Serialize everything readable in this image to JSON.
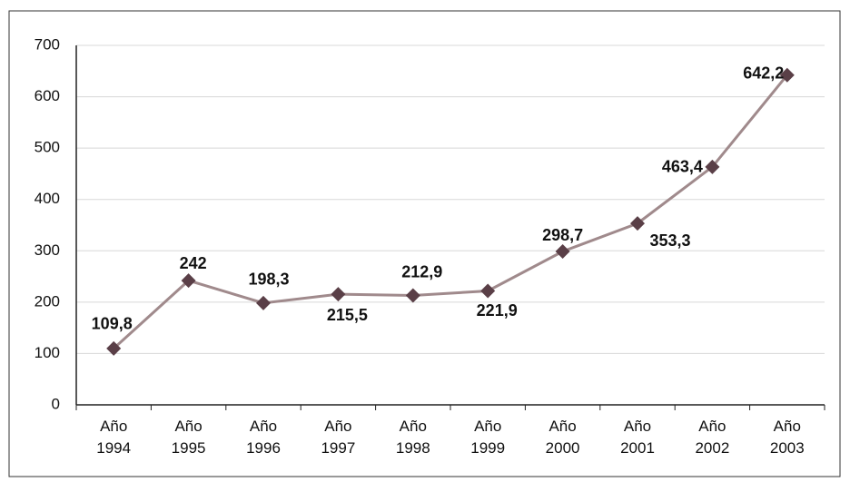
{
  "chart_data": {
    "type": "line",
    "categories": [
      "Año\n1994",
      "Año\n1995",
      "Año\n1996",
      "Año\n1997",
      "Año\n1998",
      "Año\n1999",
      "Año\n2000",
      "Año\n2001",
      "Año\n2002",
      "Año\n2003"
    ],
    "values": [
      109.8,
      242,
      198.3,
      215.5,
      212.9,
      221.9,
      298.7,
      353.3,
      463.4,
      642.2
    ],
    "value_labels": [
      "109,8",
      "242",
      "198,3",
      "215,5",
      "212,9",
      "221,9",
      "298,7",
      "353,3",
      "463,4",
      "642,2"
    ],
    "color": "#a08a8c",
    "marker_color": "#5a3f47",
    "ylim": [
      0,
      700
    ],
    "yticks": [
      0,
      100,
      200,
      300,
      400,
      500,
      600,
      700
    ],
    "grid": true
  }
}
